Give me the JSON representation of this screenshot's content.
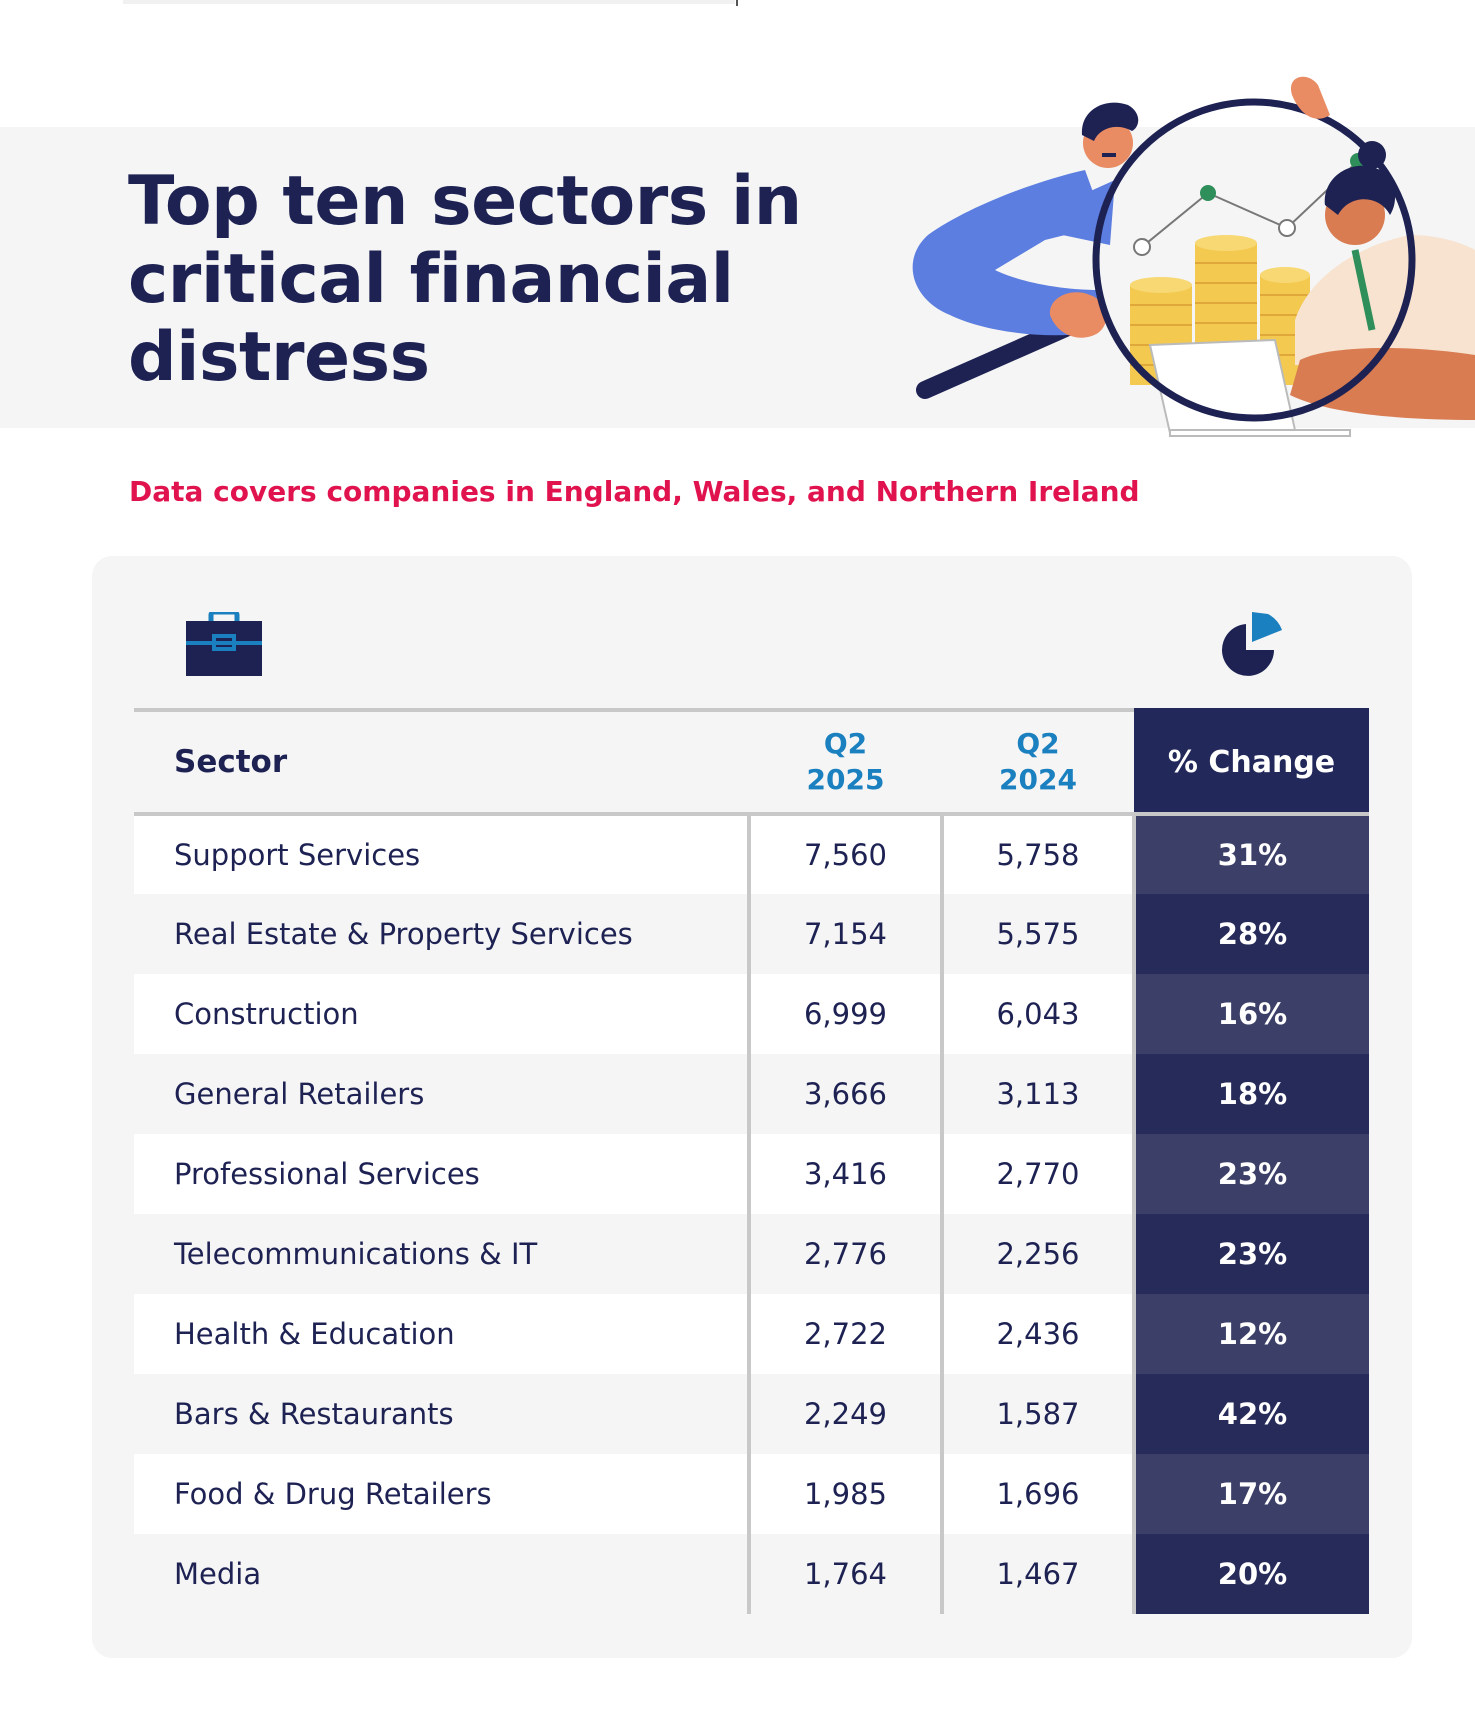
{
  "header": {
    "title": "Top ten sectors in critical financial distress",
    "subtitle": "Data covers companies in England, Wales, and Northern Ireland"
  },
  "icons": {
    "left": "briefcase-icon",
    "right": "pie-chart-icon",
    "illustration": "magnifying-glass-people-coins-illustration"
  },
  "colors": {
    "title": "#1d2253",
    "subtitle": "#e0134f",
    "quarter_header": "#1b80bf",
    "change_column": "#22285a",
    "card_bg": "#f5f5f5"
  },
  "chart_data": {
    "type": "table",
    "title": "Top ten sectors in critical financial distress",
    "columns": [
      "Sector",
      "Q2 2025",
      "Q2 2024",
      "% Change"
    ],
    "column_header_lines": {
      "q2025": [
        "Q2",
        "2025"
      ],
      "q2024": [
        "Q2",
        "2024"
      ]
    },
    "rows": [
      {
        "sector": "Support Services",
        "q2_2025": "7,560",
        "q2_2024": "5,758",
        "change": "31%"
      },
      {
        "sector": "Real Estate & Property Services",
        "q2_2025": "7,154",
        "q2_2024": "5,575",
        "change": "28%"
      },
      {
        "sector": "Construction",
        "q2_2025": "6,999",
        "q2_2024": "6,043",
        "change": "16%"
      },
      {
        "sector": "General Retailers",
        "q2_2025": "3,666",
        "q2_2024": "3,113",
        "change": "18%"
      },
      {
        "sector": "Professional Services",
        "q2_2025": "3,416",
        "q2_2024": "2,770",
        "change": "23%"
      },
      {
        "sector": "Telecommunications & IT",
        "q2_2025": "2,776",
        "q2_2024": "2,256",
        "change": "23%"
      },
      {
        "sector": "Health & Education",
        "q2_2025": "2,722",
        "q2_2024": "2,436",
        "change": "12%"
      },
      {
        "sector": "Bars & Restaurants",
        "q2_2025": "2,249",
        "q2_2024": "1,587",
        "change": "42%"
      },
      {
        "sector": "Food & Drug Retailers",
        "q2_2025": "1,985",
        "q2_2024": "1,696",
        "change": "17%"
      },
      {
        "sector": "Media",
        "q2_2025": "1,764",
        "q2_2024": "1,467",
        "change": "20%"
      }
    ]
  }
}
